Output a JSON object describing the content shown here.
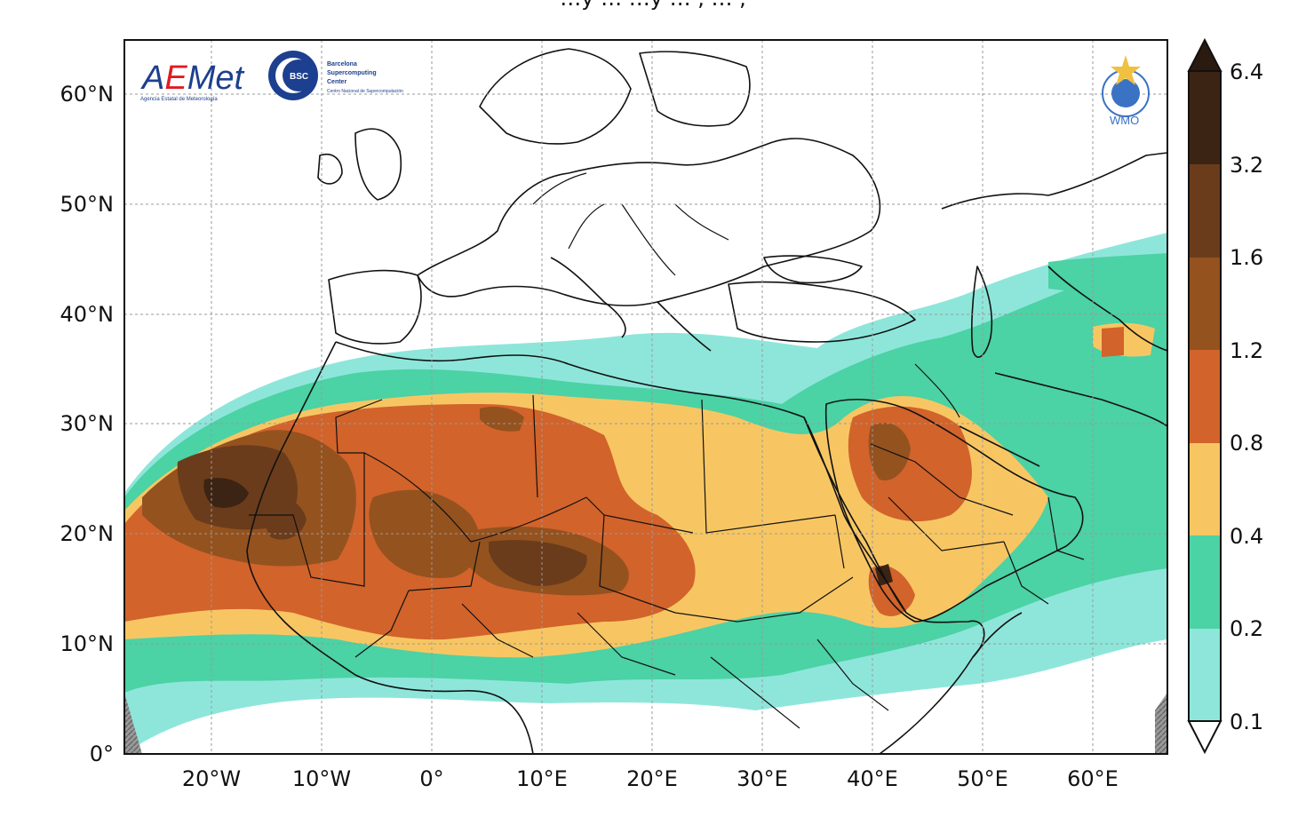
{
  "title_partial": "…y … …y … , … ,",
  "logos": {
    "aemet": {
      "text": "AEMet",
      "subtext": "Agencia Estatal de Meteorología",
      "colors": [
        "#1d3f8f",
        "#e01b22"
      ]
    },
    "bsc": {
      "badge": "BSC",
      "line1": "Barcelona",
      "line2": "Supercomputing",
      "line3": "Center",
      "line4": "Centro Nacional de Supercomputación",
      "color": "#1d3f8f"
    },
    "wmo": {
      "text": "WMO",
      "color": "#3a72c4"
    }
  },
  "map": {
    "lat_ticks": [
      "60°N",
      "50°N",
      "40°N",
      "30°N",
      "20°N",
      "10°N",
      "0°"
    ],
    "lon_ticks": [
      "20°W",
      "10°W",
      "0°",
      "10°E",
      "20°E",
      "30°E",
      "40°E",
      "50°E",
      "60°E"
    ],
    "gridlines": true,
    "colorbar_ticks": [
      "6.4",
      "3.2",
      "1.6",
      "1.2",
      "0.8",
      "0.4",
      "0.2",
      "0.1"
    ],
    "colorbar_colors": [
      "#ffffff",
      "#8ee6da",
      "#4bd2a5",
      "#f7c663",
      "#d2632b",
      "#94521f",
      "#6a3c1c",
      "#3c2414",
      "#2b1a10"
    ]
  }
}
